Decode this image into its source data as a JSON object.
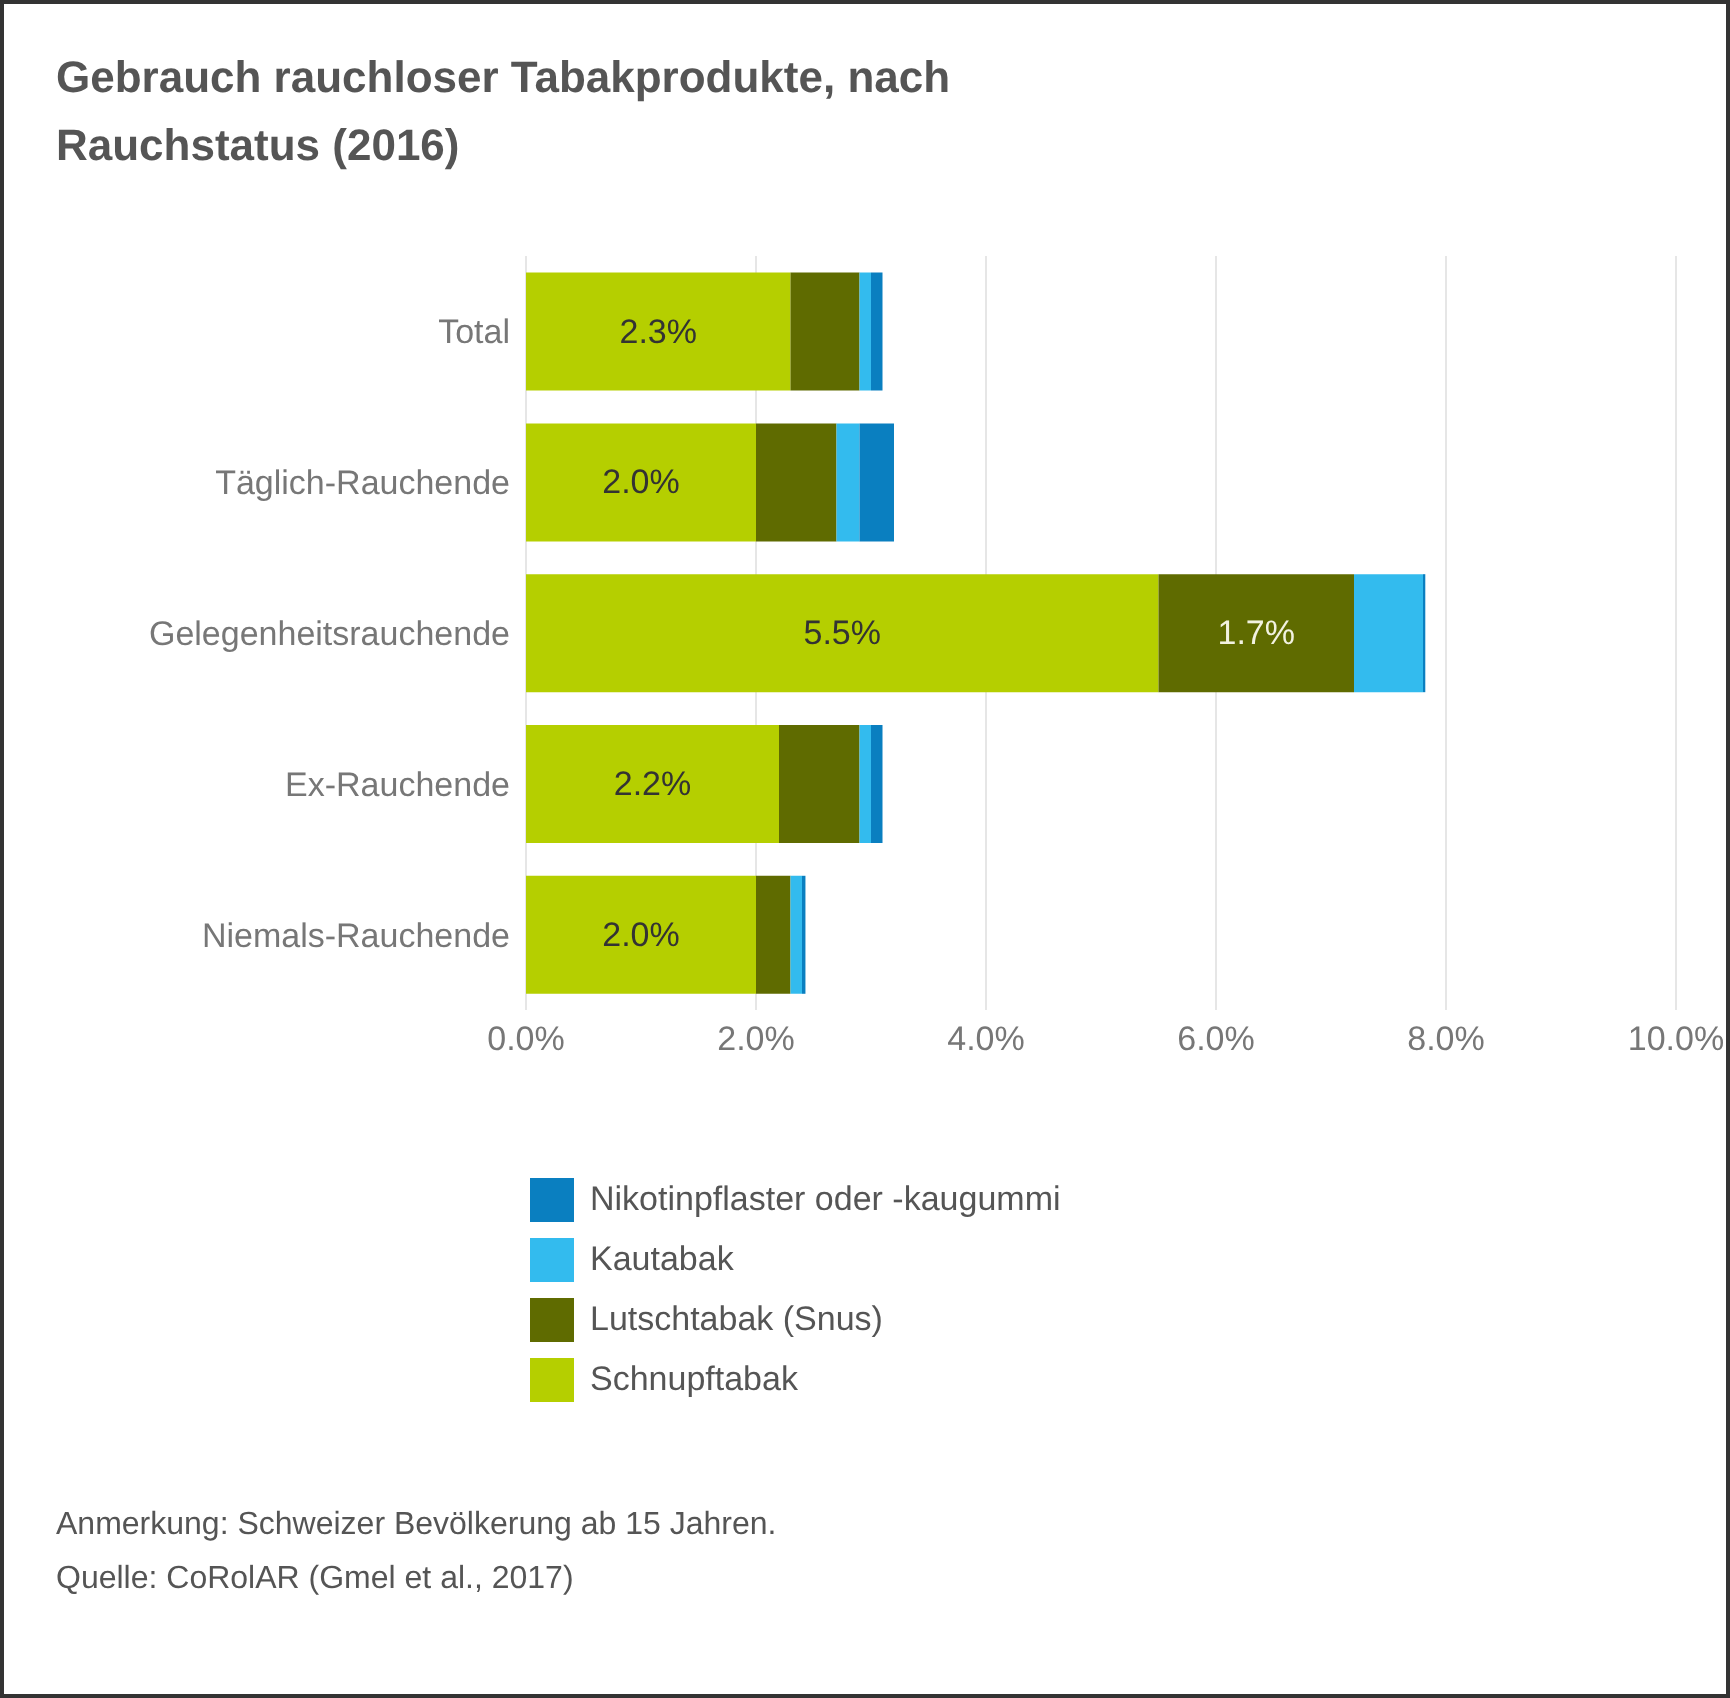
{
  "chart_data": {
    "type": "bar",
    "orientation": "horizontal",
    "stacked": true,
    "title": "Gebrauch rauchloser Tabakprodukte, nach Rauchstatus (2016)",
    "categories": [
      "Total",
      "Täglich-Rauchende",
      "Gelegenheitsrauchende",
      "Ex-Rauchende",
      "Niemals-Rauchende"
    ],
    "series": [
      {
        "name": "Schnupftabak",
        "color": "#b5cf00",
        "values": [
          2.3,
          2.0,
          5.5,
          2.2,
          2.0
        ],
        "value_labels": [
          "2.3%",
          "2.0%",
          "5.5%",
          "2.2%",
          "2.0%"
        ]
      },
      {
        "name": "Lutschtabak (Snus)",
        "color": "#5f6b00",
        "values": [
          0.6,
          0.7,
          1.7,
          0.7,
          0.3
        ],
        "value_labels": [
          null,
          null,
          "1.7%",
          null,
          null
        ]
      },
      {
        "name": "Kautabak",
        "color": "#33bbee",
        "values": [
          0.1,
          0.2,
          0.6,
          0.1,
          0.1
        ]
      },
      {
        "name": "Nikotinpflaster oder -kaugummi",
        "color": "#0a7fc0",
        "values": [
          0.1,
          0.3,
          0.02,
          0.1,
          0.03
        ]
      }
    ],
    "xlim": [
      0,
      10
    ],
    "xticks": [
      {
        "value": 0,
        "label": "0.0%"
      },
      {
        "value": 2,
        "label": "2.0%"
      },
      {
        "value": 4,
        "label": "4.0%"
      },
      {
        "value": 6,
        "label": "6.0%"
      },
      {
        "value": 8,
        "label": "8.0%"
      },
      {
        "value": 10,
        "label": "10.0%"
      }
    ],
    "grid": "x",
    "legend": "bottom",
    "annotations": [
      "Anmerkung: Schweizer Bevölkerung ab 15 Jahren.",
      "Quelle: CoRolAR (Gmel et al., 2017)"
    ]
  }
}
